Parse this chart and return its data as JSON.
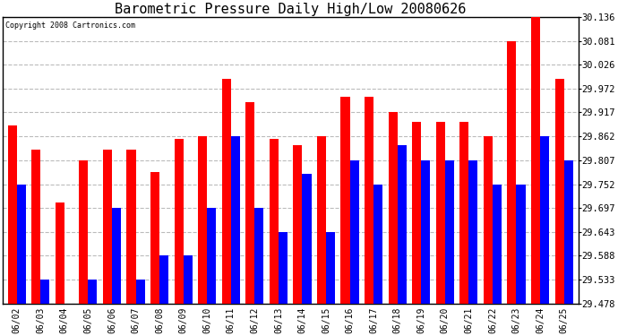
{
  "title": "Barometric Pressure Daily High/Low 20080626",
  "copyright": "Copyright 2008 Cartronics.com",
  "dates": [
    "06/02",
    "06/03",
    "06/04",
    "06/05",
    "06/06",
    "06/07",
    "06/08",
    "06/09",
    "06/10",
    "06/11",
    "06/12",
    "06/13",
    "06/14",
    "06/15",
    "06/16",
    "06/17",
    "06/18",
    "06/19",
    "06/20",
    "06/21",
    "06/22",
    "06/23",
    "06/24",
    "06/25"
  ],
  "highs": [
    29.886,
    29.831,
    29.71,
    29.807,
    29.831,
    29.831,
    29.78,
    29.855,
    29.862,
    29.993,
    29.941,
    29.855,
    29.841,
    29.862,
    29.953,
    29.953,
    29.917,
    29.896,
    29.896,
    29.896,
    29.862,
    30.081,
    30.136,
    29.993
  ],
  "lows": [
    29.752,
    29.533,
    29.478,
    29.533,
    29.697,
    29.533,
    29.588,
    29.588,
    29.697,
    29.862,
    29.697,
    29.643,
    29.775,
    29.643,
    29.807,
    29.752,
    29.841,
    29.807,
    29.807,
    29.807,
    29.752,
    29.752,
    29.862,
    29.807
  ],
  "bar_color_high": "#ff0000",
  "bar_color_low": "#0000ff",
  "background_color": "#ffffff",
  "plot_background": "#ffffff",
  "grid_color": "#bbbbbb",
  "title_fontsize": 11,
  "ymin": 29.478,
  "ymax": 30.136,
  "yticks": [
    29.478,
    29.533,
    29.588,
    29.643,
    29.697,
    29.752,
    29.807,
    29.862,
    29.917,
    29.972,
    30.026,
    30.081,
    30.136
  ]
}
